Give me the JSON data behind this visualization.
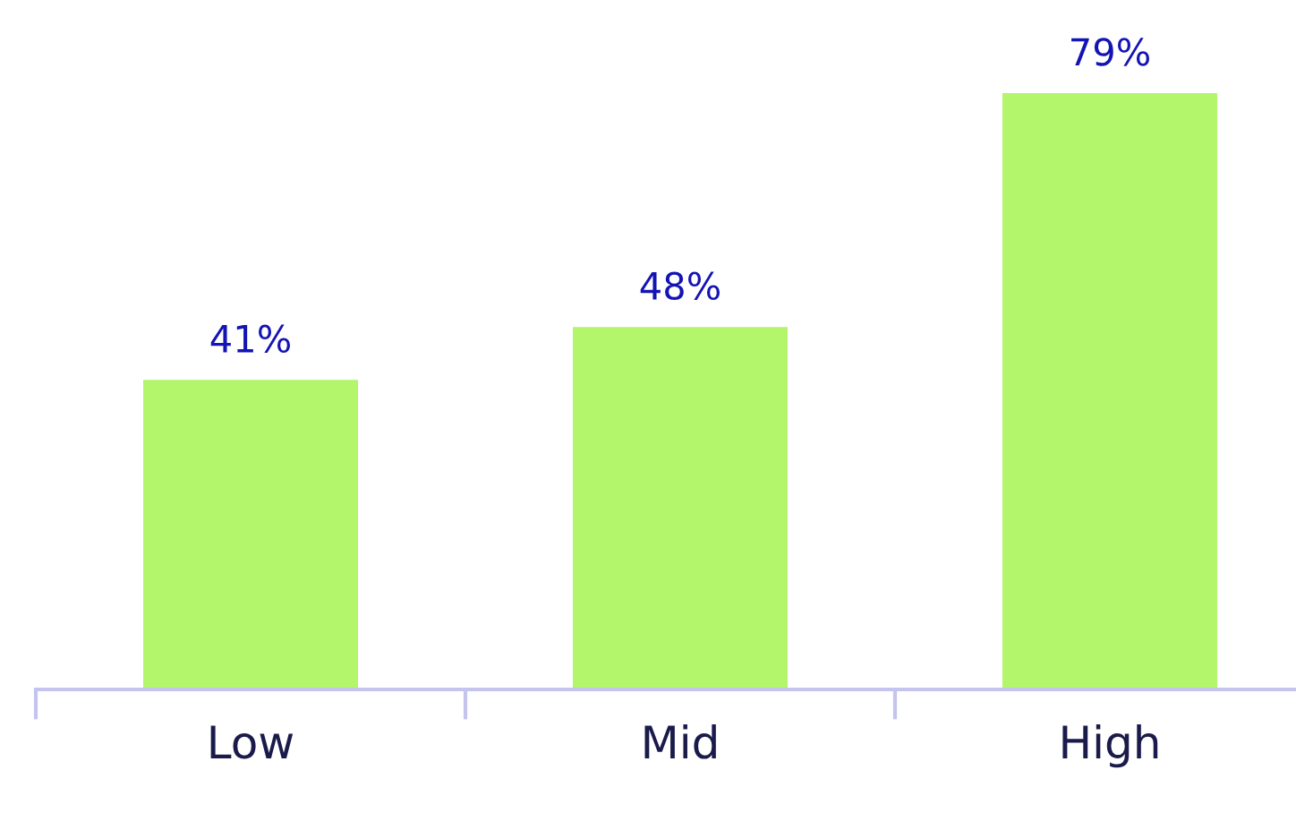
{
  "chart_data": {
    "type": "bar",
    "categories": [
      "Low",
      "Mid",
      "High"
    ],
    "values": [
      41,
      48,
      79
    ],
    "value_labels": [
      "41%",
      "48%",
      "79%"
    ],
    "color": "#b3f56b",
    "grid": false,
    "legend": false
  }
}
